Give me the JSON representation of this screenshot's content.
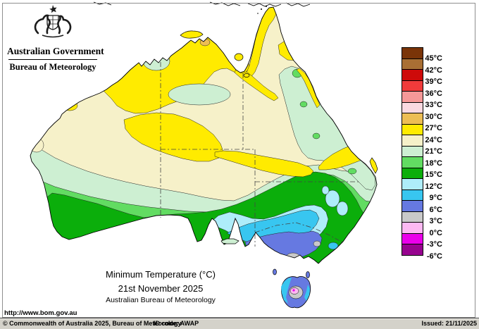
{
  "header": {
    "gov_label": "Australian Government",
    "bureau_label": "Bureau of Meteorology"
  },
  "titles": {
    "line1": "Minimum Temperature (°C)",
    "line2": "21st November 2025",
    "line3": "Australian Bureau of Meteorology"
  },
  "url_label": "http://www.bom.gov.au",
  "footer": {
    "copyright": "© Commonwealth of Australia 2025, Bureau of Meteorology",
    "id_code": "ID code: AWAP",
    "issued": "Issued: 21/11/2025"
  },
  "legend": {
    "labels": [
      "45°C",
      "42°C",
      "39°C",
      "36°C",
      "33°C",
      "30°C",
      "27°C",
      "24°C",
      "21°C",
      "18°C",
      "15°C",
      "12°C",
      "9°C",
      "6°C",
      "3°C",
      "0°C",
      "-3°C",
      "-6°C"
    ],
    "colors": [
      "#7A3408",
      "#A96F34",
      "#CE0A0A",
      "#F03B3B",
      "#F59898",
      "#FAD9E1",
      "#EDBE54",
      "#FFEB00",
      "#F6F1C9",
      "#CDEFD2",
      "#62DC62",
      "#0BAE0B",
      "#AEEDFA",
      "#38C6F0",
      "#6679E1",
      "#C9C9C9",
      "#FCB9F2",
      "#EA00EA",
      "#97038F"
    ],
    "speckled_indices": [
      0,
      1,
      4,
      5,
      6,
      16
    ]
  },
  "map": {
    "kind": "minimum temperature analysis, Australia",
    "sea_color": "#FFFFFF",
    "coast_color": "#000000"
  }
}
